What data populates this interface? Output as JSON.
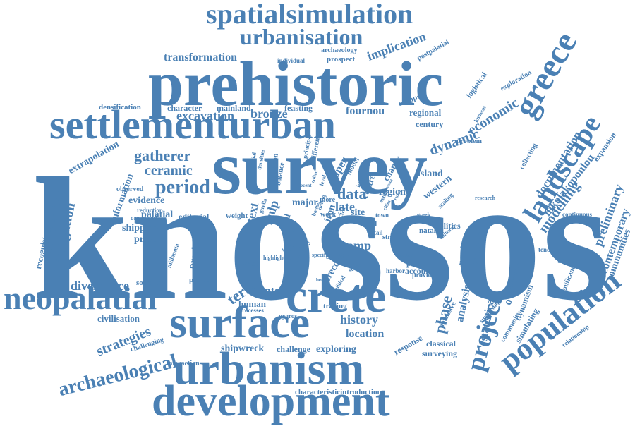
{
  "color": "#4a80b4",
  "words": [
    "knossos",
    "survey",
    "prehistoric",
    "crete",
    "surface",
    "urbanism",
    "development",
    "settlementurban",
    "neopalatial",
    "spatialsimulation",
    "urbanisation",
    "greece",
    "population",
    "landscape",
    "project",
    "archaeological",
    "transformation",
    "excavation",
    "period",
    "gatherer",
    "ceramic",
    "bronze",
    "fournou",
    "economic",
    "dynamic",
    "documentation",
    "nikolakopoulou",
    "modelling",
    "preliminary",
    "contemporary",
    "communities",
    "phase",
    "analysis",
    "overview",
    "divergence",
    "investigation",
    "understanding",
    "recognising",
    "information",
    "extrapolation",
    "evidence",
    "palatial",
    "shipping",
    "present",
    "previous",
    "context",
    "data",
    "late",
    "region",
    "site",
    "camp",
    "study",
    "history",
    "location",
    "term",
    "hunter",
    "record",
    "paper",
    "island",
    "western",
    "northern",
    "occupation",
    "statistical",
    "intensive",
    "dynamism",
    "community",
    "simulating",
    "classical",
    "surveying",
    "exploring",
    "response",
    "challenge",
    "strategies",
    "challenging",
    "shipwreck",
    "interaction",
    "civilisation",
    "human",
    "processes",
    "tracing",
    "pygros",
    "political",
    "benefit",
    "characteristicintroduction",
    "building",
    "tendency",
    "significant",
    "relationship",
    "continuous",
    "research",
    "expansion",
    "exploration",
    "logistical",
    "postpalatial",
    "implication",
    "archaeology",
    "prospect",
    "individual",
    "densification",
    "character",
    "mainland",
    "feasting",
    "collapse",
    "regional",
    "century",
    "problem",
    "knossos",
    "collecting",
    "change",
    "model",
    "balance",
    "transition",
    "material",
    "densities",
    "principal",
    "different",
    "observed",
    "organised",
    "editorial",
    "weight",
    "major",
    "more",
    "kulp",
    "iron",
    "feeding",
    "valley",
    "pavuk",
    "myrtos",
    "centre",
    "final",
    "detail",
    "string",
    "middle",
    "session",
    "pattern",
    "account",
    "provide",
    "greek",
    "mobile",
    "natalie",
    "polities",
    "cultural",
    "surprising",
    "reduction",
    "millennia",
    "sociality",
    "preface",
    "work",
    "dating",
    "scaling",
    "school",
    "harbor",
    "bound",
    "specific",
    "highlight",
    "extent",
    "recent",
    "town",
    "cities",
    "girella",
    "size",
    "social",
    "rural",
    "food",
    "mud",
    "level",
    "edited",
    "house",
    "settlement"
  ]
}
